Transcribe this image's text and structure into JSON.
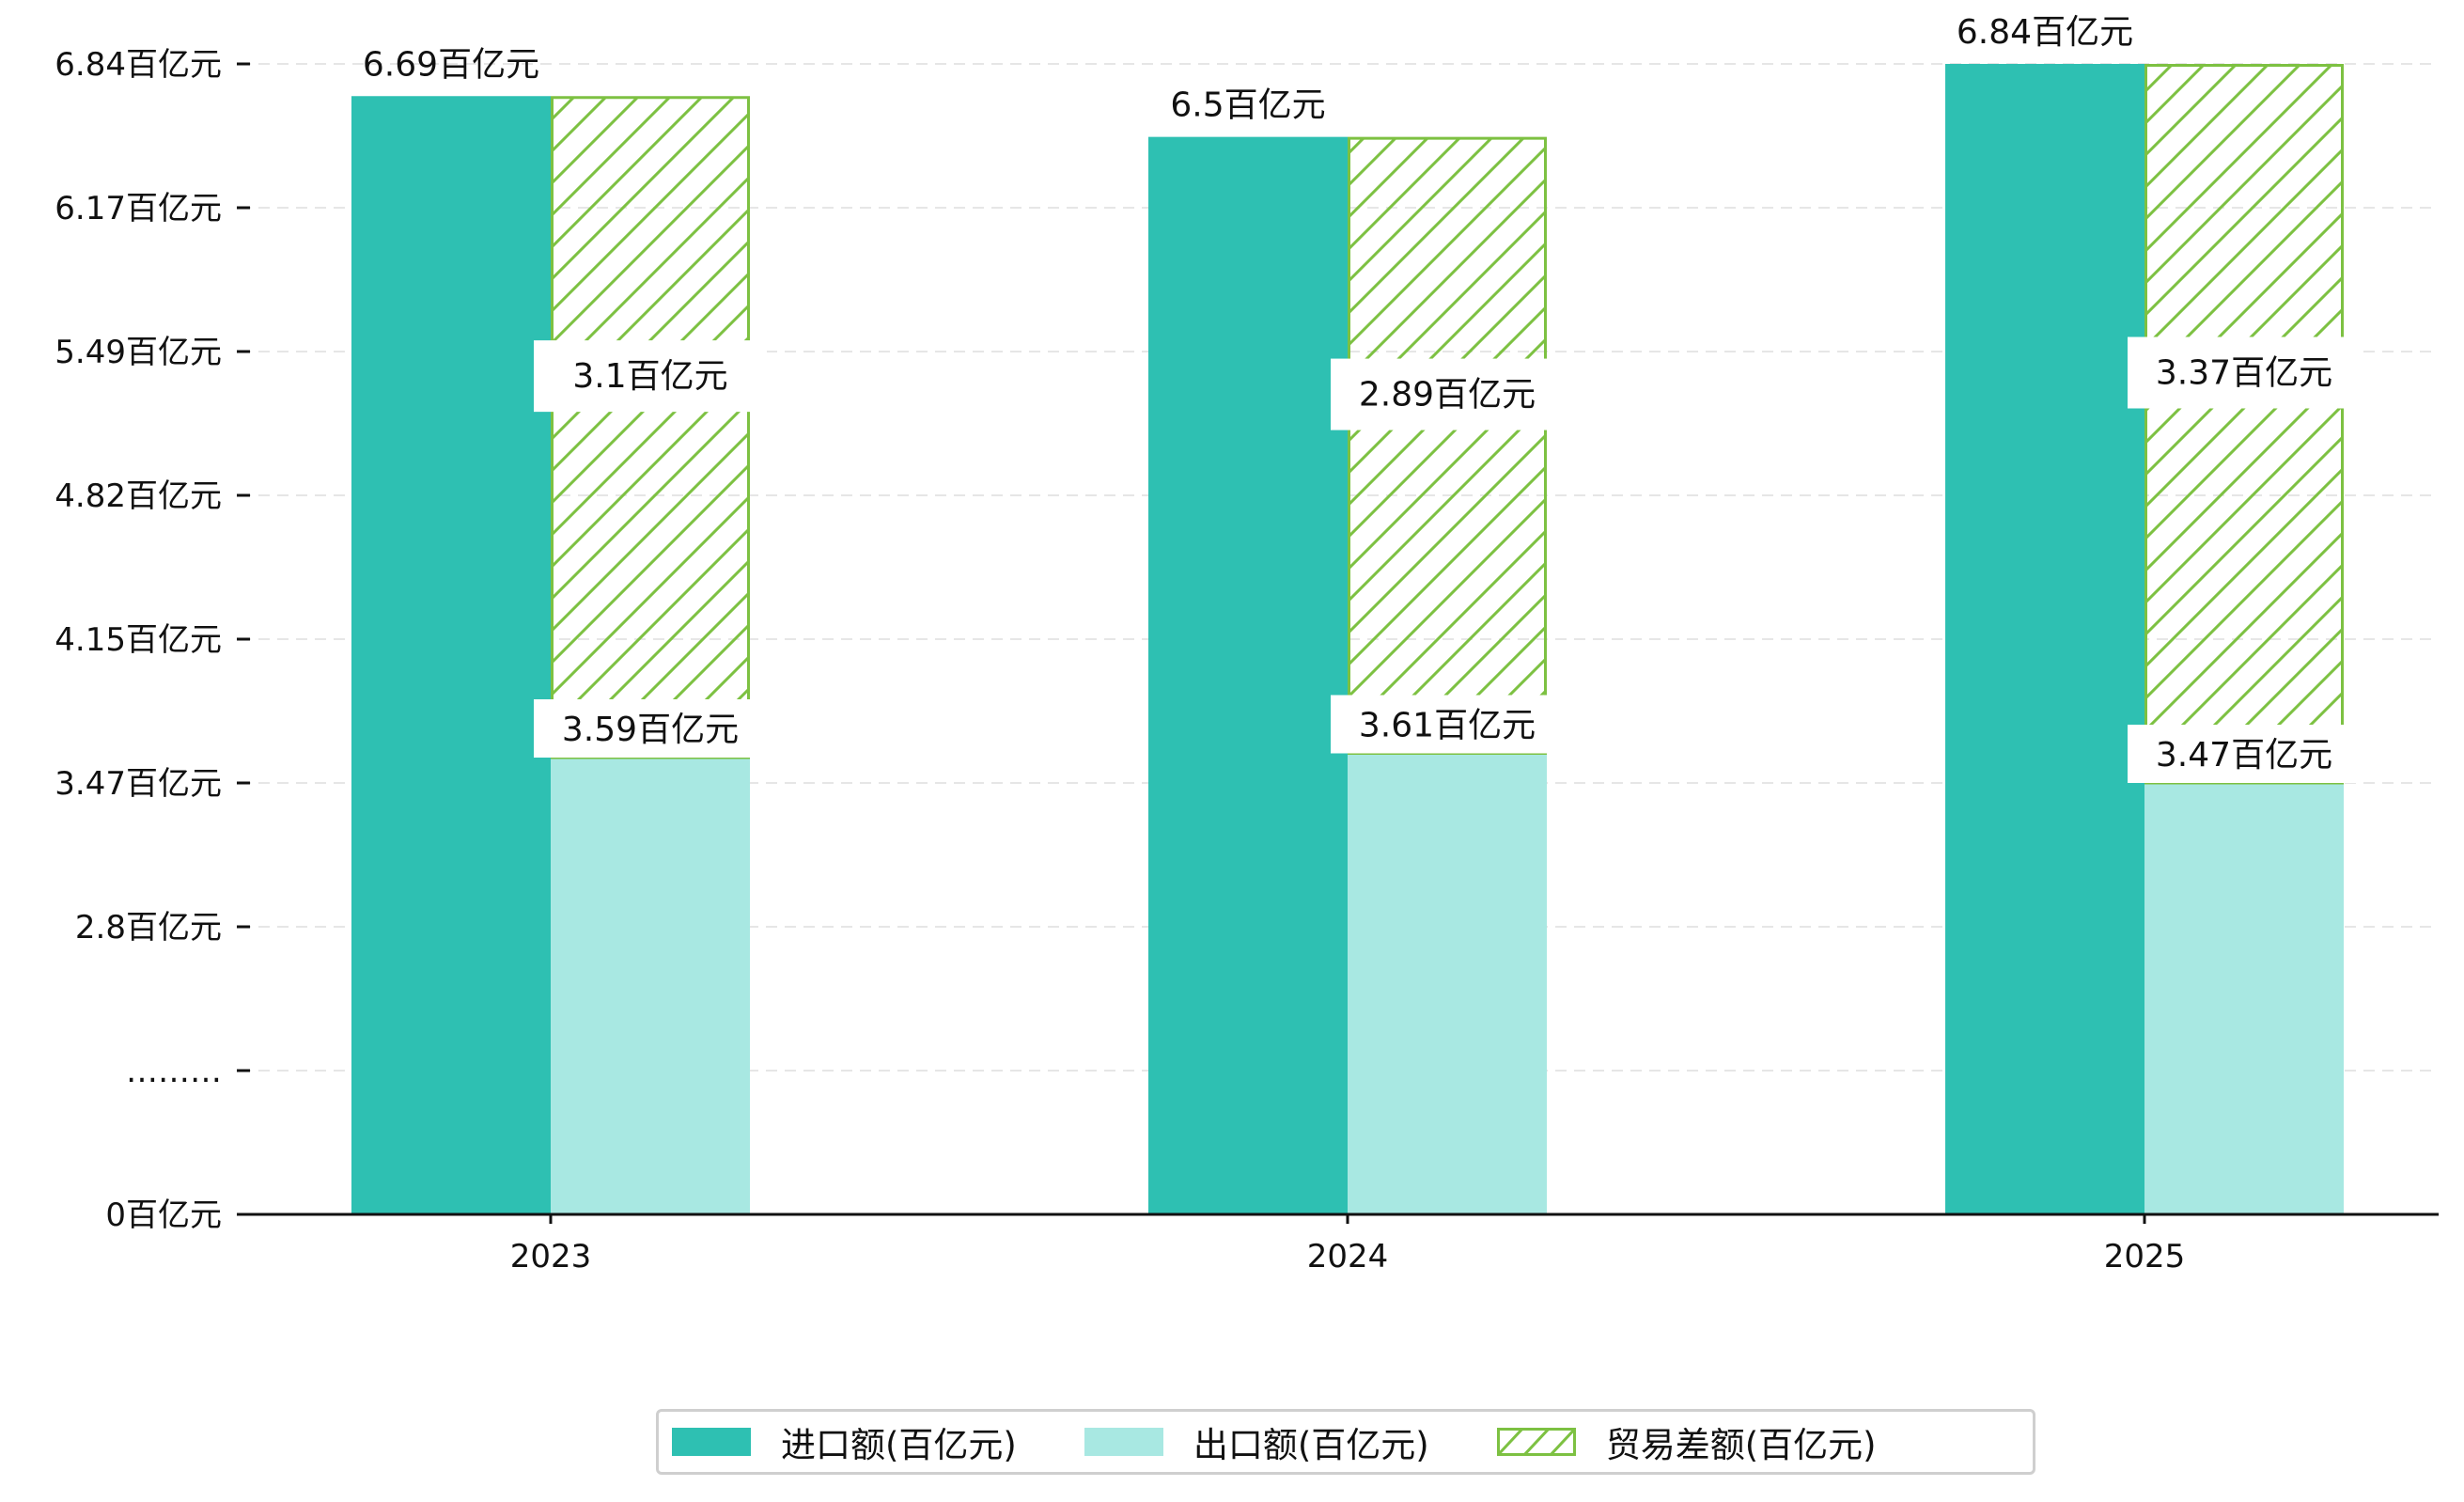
{
  "chart_data": {
    "type": "bar",
    "title": "",
    "xlabel": "",
    "ylabel": "",
    "categories": [
      "2023",
      "2024",
      "2025"
    ],
    "series": [
      {
        "name": "进口额(百亿元)",
        "values": [
          6.69,
          6.5,
          6.84
        ],
        "labels": [
          "6.69百亿元",
          "6.5百亿元",
          "6.84百亿元"
        ],
        "color": "#2ec0b2",
        "style": "solid"
      },
      {
        "name": "出口额(百亿元)",
        "values": [
          3.59,
          3.61,
          3.47
        ],
        "labels": [
          "3.59百亿元",
          "3.61百亿元",
          "3.47百亿元"
        ],
        "color": "#a8e8e2",
        "style": "solid",
        "stack": "trade"
      },
      {
        "name": "贸易差额(百亿元)",
        "values": [
          3.1,
          2.89,
          3.37
        ],
        "labels": [
          "3.1百亿元",
          "2.89百亿元",
          "3.37百亿元"
        ],
        "color": "#7dc142",
        "style": "hatched",
        "stack": "trade"
      }
    ],
    "y_ticks": [
      {
        "value": 0,
        "label": "0百亿元"
      },
      {
        "value": 1.0,
        "label": "………"
      },
      {
        "value": 2.8,
        "label": "2.8百亿元"
      },
      {
        "value": 3.47,
        "label": "3.47百亿元"
      },
      {
        "value": 4.15,
        "label": "4.15百亿元"
      },
      {
        "value": 4.82,
        "label": "4.82百亿元"
      },
      {
        "value": 5.49,
        "label": "5.49百亿元"
      },
      {
        "value": 6.17,
        "label": "6.17百亿元"
      },
      {
        "value": 6.84,
        "label": "6.84百亿元"
      }
    ],
    "axis_break": true,
    "grid": "horizontal-dashed",
    "legend_position": "bottom-center"
  }
}
